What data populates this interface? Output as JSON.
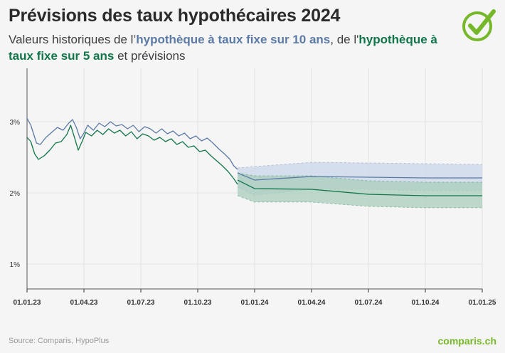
{
  "title": "Prévisions des taux hypothécaires 2024",
  "subtitle": {
    "part1": "Valeurs historiques de l’",
    "series10": "hypothèque à taux fixe sur 10 ans",
    "part2": ", de l'",
    "series5": "hypothèque à taux fixe sur 5 ans",
    "part3": " et prévisions"
  },
  "source": "Source: Comparis, HypoPlus",
  "brand": "comparis.ch",
  "icons": {
    "badge": "check-circle-icon"
  },
  "colors": {
    "ten_year": "#5b7aa5",
    "five_year": "#11754a",
    "ten_year_band": "#c9d6ea",
    "five_year_band": "#a9cdbb",
    "brand": "#77b82a"
  },
  "chart_data": {
    "type": "line",
    "x_tick_labels": [
      "01.01.23",
      "01.04.23",
      "01.07.23",
      "01.10.23",
      "01.01.24",
      "01.04.24",
      "01.07.24",
      "01.10.24",
      "01.01.25"
    ],
    "y_tick_labels": [
      "1%",
      "2%",
      "3%"
    ],
    "y_ticks": [
      1,
      2,
      3
    ],
    "ylim": [
      0.65,
      3.75
    ],
    "xlim": [
      0,
      24
    ],
    "x_unit": "months since 01.01.23",
    "grid": true,
    "series": [
      {
        "key": "ten_year",
        "historical": [
          [
            0,
            3.05
          ],
          [
            0.2,
            2.95
          ],
          [
            0.5,
            2.7
          ],
          [
            0.7,
            2.68
          ],
          [
            1,
            2.78
          ],
          [
            1.3,
            2.85
          ],
          [
            1.6,
            2.92
          ],
          [
            1.9,
            2.88
          ],
          [
            2.2,
            2.98
          ],
          [
            2.4,
            3.03
          ],
          [
            2.6,
            2.92
          ],
          [
            2.8,
            2.76
          ],
          [
            3,
            2.84
          ],
          [
            3.2,
            2.95
          ],
          [
            3.5,
            2.88
          ],
          [
            3.8,
            2.98
          ],
          [
            4.1,
            2.93
          ],
          [
            4.4,
            3.0
          ],
          [
            4.7,
            2.94
          ],
          [
            5,
            2.96
          ],
          [
            5.3,
            2.9
          ],
          [
            5.6,
            2.95
          ],
          [
            5.9,
            2.86
          ],
          [
            6.2,
            2.93
          ],
          [
            6.5,
            2.9
          ],
          [
            6.8,
            2.84
          ],
          [
            7.1,
            2.9
          ],
          [
            7.4,
            2.83
          ],
          [
            7.7,
            2.87
          ],
          [
            8,
            2.8
          ],
          [
            8.3,
            2.84
          ],
          [
            8.6,
            2.76
          ],
          [
            8.9,
            2.8
          ],
          [
            9.2,
            2.73
          ],
          [
            9.5,
            2.77
          ],
          [
            9.8,
            2.7
          ],
          [
            10.1,
            2.62
          ],
          [
            10.4,
            2.55
          ],
          [
            10.7,
            2.47
          ],
          [
            10.9,
            2.38
          ],
          [
            11.1,
            2.33
          ]
        ],
        "forecast_x": [
          11.1,
          12,
          15,
          18,
          21,
          24
        ],
        "forecast": [
          2.28,
          2.18,
          2.23,
          2.22,
          2.21,
          2.21
        ],
        "band_upper": [
          2.35,
          2.37,
          2.43,
          2.42,
          2.41,
          2.4
        ],
        "band_lower": [
          2.08,
          1.97,
          2.05,
          2.05,
          2.03,
          2.03
        ]
      },
      {
        "key": "five_year",
        "historical": [
          [
            0,
            2.78
          ],
          [
            0.2,
            2.72
          ],
          [
            0.4,
            2.55
          ],
          [
            0.6,
            2.47
          ],
          [
            0.9,
            2.52
          ],
          [
            1.2,
            2.6
          ],
          [
            1.5,
            2.7
          ],
          [
            1.8,
            2.72
          ],
          [
            2.1,
            2.82
          ],
          [
            2.3,
            2.95
          ],
          [
            2.5,
            2.78
          ],
          [
            2.7,
            2.6
          ],
          [
            2.9,
            2.72
          ],
          [
            3.1,
            2.85
          ],
          [
            3.4,
            2.8
          ],
          [
            3.7,
            2.88
          ],
          [
            4,
            2.82
          ],
          [
            4.3,
            2.9
          ],
          [
            4.6,
            2.84
          ],
          [
            4.9,
            2.88
          ],
          [
            5.2,
            2.8
          ],
          [
            5.5,
            2.86
          ],
          [
            5.8,
            2.76
          ],
          [
            6.1,
            2.83
          ],
          [
            6.4,
            2.8
          ],
          [
            6.7,
            2.74
          ],
          [
            7,
            2.78
          ],
          [
            7.3,
            2.72
          ],
          [
            7.6,
            2.76
          ],
          [
            7.9,
            2.68
          ],
          [
            8.2,
            2.72
          ],
          [
            8.5,
            2.64
          ],
          [
            8.8,
            2.66
          ],
          [
            9.1,
            2.58
          ],
          [
            9.4,
            2.6
          ],
          [
            9.7,
            2.52
          ],
          [
            10,
            2.45
          ],
          [
            10.3,
            2.38
          ],
          [
            10.6,
            2.3
          ],
          [
            10.9,
            2.2
          ],
          [
            11.1,
            2.12
          ]
        ],
        "forecast_x": [
          11.1,
          12,
          15,
          18,
          21,
          24
        ],
        "forecast": [
          2.18,
          2.06,
          2.05,
          1.98,
          1.96,
          1.96
        ],
        "band_upper": [
          2.28,
          2.24,
          2.24,
          2.17,
          2.15,
          2.15
        ],
        "band_lower": [
          1.96,
          1.87,
          1.87,
          1.81,
          1.79,
          1.79
        ]
      }
    ]
  }
}
